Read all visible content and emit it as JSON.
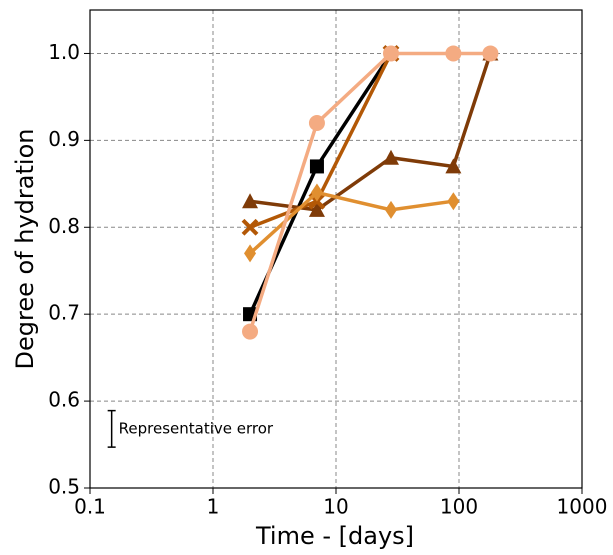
{
  "chart_data": {
    "type": "line",
    "xlabel": "Time - [days]",
    "ylabel": "Degree of hydration",
    "xscale": "log",
    "grid": true,
    "xlim": [
      0.1,
      1000
    ],
    "xticks": [
      0.1,
      1,
      10,
      100,
      1000
    ],
    "ylim": [
      0.5,
      1.05
    ],
    "yticks": [
      0.5,
      0.6,
      0.7,
      0.8,
      0.9,
      {
        "value": 1,
        "label": "1.0"
      }
    ],
    "series": [
      {
        "color": "#000000",
        "marker": "square",
        "x": [
          2,
          7,
          28
        ],
        "values": [
          0.7,
          0.87,
          1.0
        ]
      },
      {
        "color": "#7f3b08",
        "marker": "triangle",
        "x": [
          2,
          7,
          28,
          90,
          180
        ],
        "values": [
          0.83,
          0.82,
          0.88,
          0.87,
          1.0
        ]
      },
      {
        "color": "#b35806",
        "marker": "x",
        "x": [
          2,
          7,
          28
        ],
        "values": [
          0.8,
          0.83,
          1.0
        ]
      },
      {
        "color": "#e08f30",
        "marker": "diamond",
        "x": [
          2,
          7,
          28,
          90
        ],
        "values": [
          0.77,
          0.84,
          0.82,
          0.83
        ]
      },
      {
        "color": "#f4ab82",
        "marker": "circle",
        "x": [
          2,
          7,
          28,
          90,
          180
        ],
        "values": [
          0.68,
          0.92,
          1.0,
          1.0,
          1.0
        ]
      }
    ],
    "annotation": {
      "text": "Representative error",
      "x": 0.15,
      "y": 0.568,
      "error": 0.021
    }
  }
}
